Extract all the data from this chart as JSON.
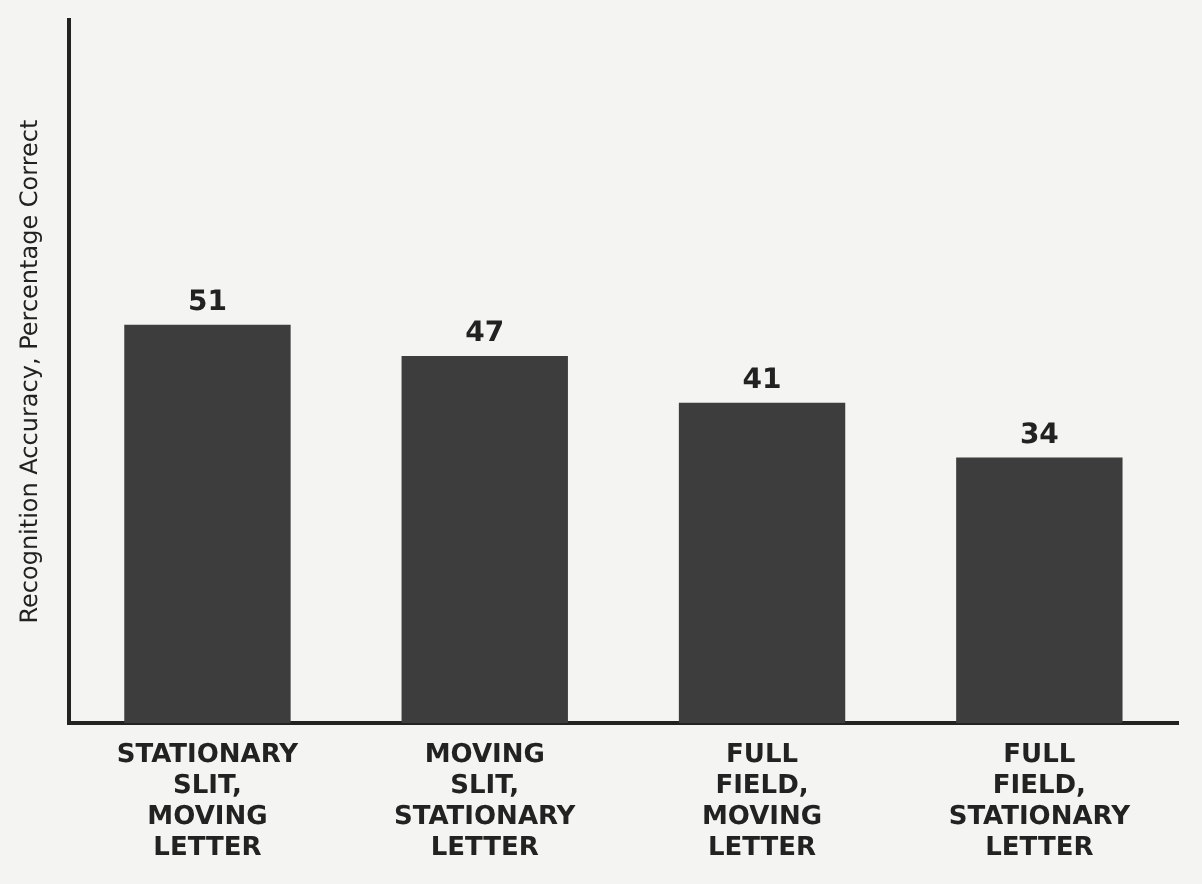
{
  "chart_data": {
    "type": "bar",
    "ylabel": "Recognition Accuracy, Percentage Correct",
    "categories": [
      "STATIONARY SLIT, MOVING LETTER",
      "MOVING SLIT, STATIONARY LETTER",
      "FULL FIELD, MOVING LETTER",
      "FULL FIELD, STATIONARY LETTER"
    ],
    "values": [
      51,
      47,
      41,
      34
    ],
    "color": "#3d3d3d",
    "ylim": [
      0,
      90
    ],
    "data_labels": true,
    "grid": false,
    "legend": false,
    "tick_labels": "x"
  }
}
